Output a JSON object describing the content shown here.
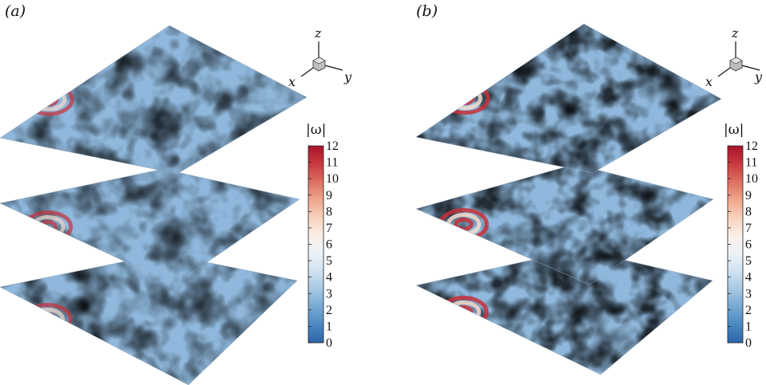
{
  "panels": [
    {
      "label_open": "(",
      "label_letter": "a",
      "label_close": ")",
      "axes": {
        "x": "x",
        "y": "y",
        "z": "z"
      },
      "colorbar": {
        "title": "|ω|",
        "ticks": [
          "12",
          "11",
          "10",
          "9",
          "8",
          "7",
          "6",
          "5",
          "4",
          "3",
          "2",
          "1",
          "0"
        ]
      },
      "intensity": 0.35
    },
    {
      "label_open": "(",
      "label_letter": "b",
      "label_close": ")",
      "axes": {
        "x": "x",
        "y": "y",
        "z": "z"
      },
      "colorbar": {
        "title": "|ω|",
        "ticks": [
          "12",
          "11",
          "10",
          "9",
          "8",
          "7",
          "6",
          "5",
          "4",
          "3",
          "2",
          "1",
          "0"
        ]
      },
      "intensity": 0.75
    }
  ],
  "colormap": {
    "min": 0,
    "max": 12,
    "stops": [
      "#2c64a8",
      "#4b88c0",
      "#77a9d2",
      "#a6c8e3",
      "#cfe2f0",
      "#ecf3f8",
      "#fbefe8",
      "#f7d1bd",
      "#eea68c",
      "#dc7062",
      "#c73a3e",
      "#a8122a"
    ]
  }
}
